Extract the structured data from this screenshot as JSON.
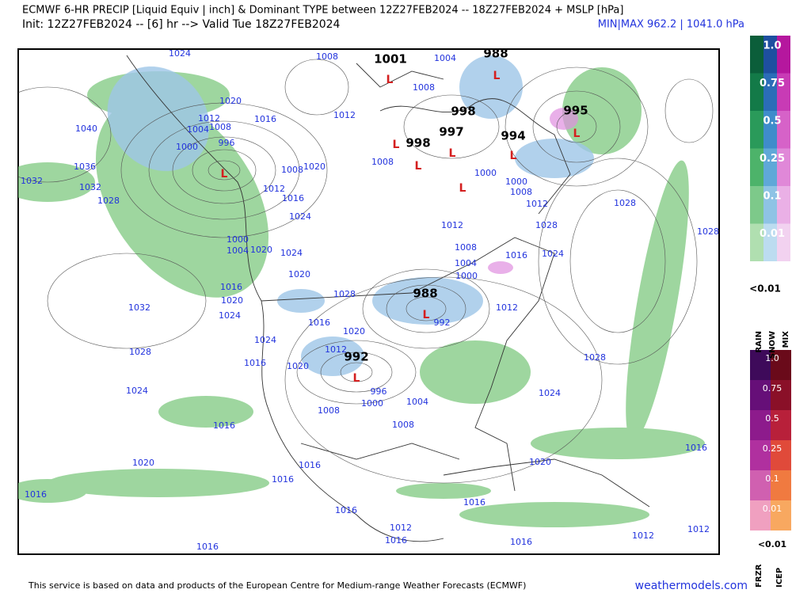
{
  "header": {
    "title": "ECMWF 6-HR PRECIP [Liquid Equiv | inch] & Dominant TYPE between 12Z27FEB2024 -- 18Z27FEB2024 + MSLP [hPa]",
    "subtitle": "Init: 12Z27FEB2024 -- [6] hr --> Valid Tue 18Z27FEB2024",
    "minmax": "MIN|MAX 962.2 | 1041.0 hPa"
  },
  "map": {
    "isobar_labels": [
      "1024",
      "1008",
      "1004",
      "1008",
      "1020",
      "1012",
      "1016",
      "1040",
      "1008",
      "1004",
      "1012",
      "996",
      "1000",
      "1036",
      "1008",
      "1020",
      "1008",
      "1032",
      "1032",
      "1028",
      "1012",
      "1016",
      "1024",
      "1012",
      "1000",
      "1000",
      "1008",
      "1012",
      "1028",
      "1028",
      "1028",
      "1000",
      "1004",
      "1020",
      "1024",
      "1008",
      "1004",
      "1000",
      "1016",
      "1024",
      "1020",
      "1016",
      "1020",
      "1028",
      "1032",
      "1024",
      "1016",
      "1020",
      "1012",
      "992",
      "1024",
      "1012",
      "1016",
      "1020",
      "1028",
      "1028",
      "1024",
      "996",
      "1000",
      "1004",
      "1024",
      "1008",
      "1008",
      "1016",
      "1016",
      "1020",
      "1020",
      "1016",
      "1016",
      "1016",
      "1016",
      "1016",
      "1012",
      "1016",
      "1016",
      "1016",
      "1012",
      "1012"
    ],
    "center_labels": [
      "988",
      "1001",
      "998",
      "997",
      "998",
      "994",
      "995",
      "988",
      "992"
    ],
    "low_markers": [
      "L",
      "L",
      "L",
      "L",
      "L",
      "L",
      "L",
      "L",
      "L",
      "L",
      "L"
    ]
  },
  "legend": {
    "rain_snow_mix_levels": [
      "1.0",
      "0.75",
      "0.5",
      "0.25",
      "0.1",
      "0.01"
    ],
    "rain_snow_mix_min": "<0.01",
    "rain_snow_mix_types": [
      "RAIN",
      "SNOW",
      "MIX"
    ],
    "frzr_icep_levels": [
      "1.0",
      "0.75",
      "0.5",
      "0.25",
      "0.1",
      "0.01"
    ],
    "frzr_icep_min": "<0.01",
    "frzr_icep_types": [
      "FRZR",
      "ICEP"
    ]
  },
  "footer": {
    "credit": "This service is based on data and products of the European Centre for Medium-range Weather Forecasts (ECMWF)",
    "site": "weathermodels.com"
  }
}
